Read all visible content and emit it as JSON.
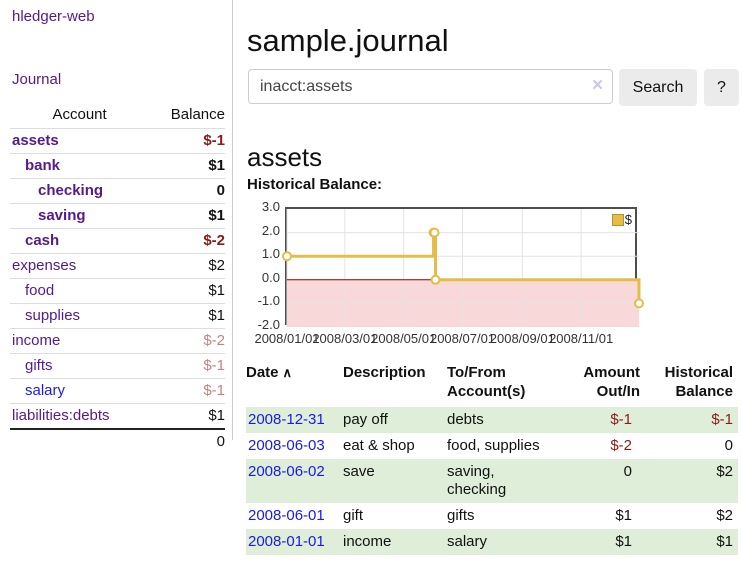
{
  "app": {
    "title": "hledger-web"
  },
  "sidebar": {
    "journal_label": "Journal",
    "headers": {
      "account": "Account",
      "balance": "Balance"
    },
    "rows": [
      {
        "name": "assets",
        "indent": 0,
        "bold": true,
        "link": "purple",
        "balance": "$-1",
        "balance_class": "neg-strong"
      },
      {
        "name": "bank",
        "indent": 1,
        "bold": true,
        "link": "purple",
        "balance": "$1",
        "balance_class": ""
      },
      {
        "name": "checking",
        "indent": 2,
        "bold": true,
        "link": "purple",
        "balance": "0",
        "balance_class": ""
      },
      {
        "name": "saving",
        "indent": 2,
        "bold": true,
        "link": "purple",
        "balance": "$1",
        "balance_class": ""
      },
      {
        "name": "cash",
        "indent": 1,
        "bold": true,
        "link": "purple",
        "balance": "$-2",
        "balance_class": "neg-strong"
      },
      {
        "name": "expenses",
        "indent": 0,
        "bold": false,
        "link": "purple",
        "balance": "$2",
        "balance_class": ""
      },
      {
        "name": "food",
        "indent": 1,
        "bold": false,
        "link": "purple",
        "balance": "$1",
        "balance_class": ""
      },
      {
        "name": "supplies",
        "indent": 1,
        "bold": false,
        "link": "purple",
        "balance": "$1",
        "balance_class": ""
      },
      {
        "name": "income",
        "indent": 0,
        "bold": false,
        "link": "purple",
        "balance": "$-2",
        "balance_class": "neg-soft"
      },
      {
        "name": "gifts",
        "indent": 1,
        "bold": false,
        "link": "purple",
        "balance": "$-1",
        "balance_class": "neg-soft"
      },
      {
        "name": "salary",
        "indent": 1,
        "bold": false,
        "link": "blue",
        "balance": "$-1",
        "balance_class": "neg-soft"
      },
      {
        "name": "liabilities:debts",
        "indent": 0,
        "bold": false,
        "link": "purple",
        "balance": "$1",
        "balance_class": ""
      }
    ],
    "total": "0"
  },
  "main": {
    "title": "sample.journal",
    "search": {
      "value": "inacct:assets",
      "clear_icon": "×",
      "button_label": "Search",
      "help_label": "?"
    },
    "account_heading": "assets",
    "chart_label": "Historical Balance:",
    "register": {
      "sort_icon": "∧",
      "headers": {
        "date": "Date",
        "description": "Description",
        "tofrom_line1": "To/From",
        "tofrom_line2": "Account(s)",
        "amount_line1": "Amount",
        "amount_line2": "Out/In",
        "balance_line1": "Historical",
        "balance_line2": "Balance"
      },
      "rows": [
        {
          "date": "2008-12-31",
          "description": "pay off",
          "accounts": "debts",
          "amount": "$-1",
          "amount_negative": true,
          "balance": "$-1",
          "balance_negative": true,
          "shaded": true
        },
        {
          "date": "2008-06-03",
          "description": "eat & shop",
          "accounts": "food, supplies",
          "amount": "$-2",
          "amount_negative": true,
          "balance": "0",
          "balance_negative": false,
          "shaded": false
        },
        {
          "date": "2008-06-02",
          "description": "save",
          "accounts": "saving, checking",
          "amount": "0",
          "amount_negative": false,
          "balance": "$2",
          "balance_negative": false,
          "shaded": true
        },
        {
          "date": "2008-06-01",
          "description": "gift",
          "accounts": "gifts",
          "amount": "$1",
          "amount_negative": false,
          "balance": "$2",
          "balance_negative": false,
          "shaded": false
        },
        {
          "date": "2008-01-01",
          "description": "income",
          "accounts": "salary",
          "amount": "$1",
          "amount_negative": false,
          "balance": "$1",
          "balance_negative": false,
          "shaded": true
        }
      ]
    }
  },
  "chart_data": {
    "type": "line",
    "title": "Historical Balance",
    "legend": "$",
    "step": true,
    "x": [
      "2008-01-01",
      "2008-06-01",
      "2008-06-02",
      "2008-06-03",
      "2008-12-31"
    ],
    "y": [
      1,
      2,
      2,
      0,
      -1
    ],
    "xrange": [
      "2008-01-01",
      "2008-12-31"
    ],
    "ylim": [
      -2,
      3
    ],
    "yticks": [
      -2,
      -1,
      0,
      1,
      2,
      3
    ],
    "xticks": [
      {
        "date": "2008-01-01",
        "label": "2008/01/01"
      },
      {
        "date": "2008-03-01",
        "label": "2008/03/01"
      },
      {
        "date": "2008-05-01",
        "label": "2008/05/01"
      },
      {
        "date": "2008-07-01",
        "label": "2008/07/01"
      },
      {
        "date": "2008-09-01",
        "label": "2008/09/01"
      },
      {
        "date": "2008-11-01",
        "label": "2008/11/01"
      }
    ],
    "grid": true,
    "legend_position": "top-right"
  },
  "colors": {
    "link_purple": "#551a8b",
    "link_blue": "#1a1ae8",
    "negative_strong": "#8b1a1a",
    "negative_soft": "#c58383",
    "row_green": "#dfeed8",
    "chart_line_gold": "#e3bd49",
    "chart_negative_region": "#f8d8d8",
    "chart_zero_line": "#8b0000",
    "chart_grid": "#e3e3e3"
  }
}
